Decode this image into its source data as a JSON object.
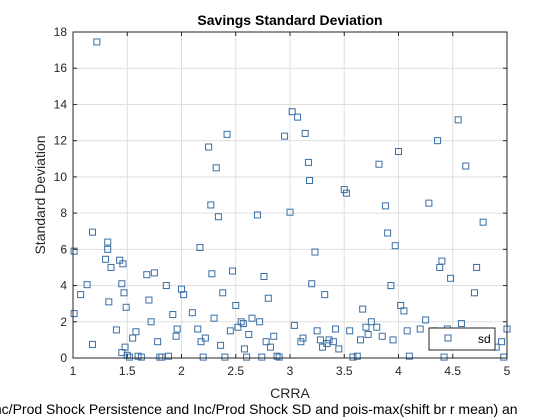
{
  "chart_data": {
    "type": "scatter",
    "title": "Savings Standard Deviation",
    "xlabel": "CRRA",
    "ylabel": "Standard Deviation",
    "footer": "Inc/Prod Shock Persistence and Inc/Prod Shock SD and pois-max(shift br r mean) an",
    "xlim": [
      1,
      5
    ],
    "ylim": [
      0,
      18
    ],
    "xticks": [
      1,
      1.5,
      2,
      2.5,
      3,
      3.5,
      4,
      4.5,
      5
    ],
    "xtick_labels": [
      "1",
      "1.5",
      "2",
      "2.5",
      "3",
      "3.5",
      "4",
      "4.5",
      "5"
    ],
    "yticks": [
      0,
      2,
      4,
      6,
      8,
      10,
      12,
      14,
      16,
      18
    ],
    "ytick_labels": [
      "0",
      "2",
      "4",
      "6",
      "8",
      "10",
      "12",
      "14",
      "16",
      "18"
    ],
    "grid": true,
    "legend": {
      "position": "bottom-right",
      "entries": [
        "sd"
      ]
    },
    "marker_color": "#3a6ea5",
    "series": [
      {
        "name": "sd",
        "marker": "square",
        "points": [
          [
            1.01,
            5.9
          ],
          [
            1.01,
            2.45
          ],
          [
            1.07,
            3.5
          ],
          [
            1.13,
            4.05
          ],
          [
            1.18,
            6.95
          ],
          [
            1.22,
            17.45
          ],
          [
            1.18,
            0.75
          ],
          [
            1.3,
            5.45
          ],
          [
            1.32,
            6.4
          ],
          [
            1.32,
            6.0
          ],
          [
            1.35,
            5.0
          ],
          [
            1.33,
            3.1
          ],
          [
            1.4,
            1.55
          ],
          [
            1.43,
            5.4
          ],
          [
            1.46,
            5.2
          ],
          [
            1.45,
            4.1
          ],
          [
            1.47,
            3.6
          ],
          [
            1.49,
            2.8
          ],
          [
            1.48,
            0.6
          ],
          [
            1.45,
            0.3
          ],
          [
            1.5,
            0.15
          ],
          [
            1.52,
            0.05
          ],
          [
            1.55,
            1.1
          ],
          [
            1.58,
            1.45
          ],
          [
            1.6,
            0.1
          ],
          [
            1.63,
            0.05
          ],
          [
            1.68,
            4.6
          ],
          [
            1.7,
            3.2
          ],
          [
            1.72,
            2.0
          ],
          [
            1.75,
            4.7
          ],
          [
            1.78,
            0.9
          ],
          [
            1.8,
            0.05
          ],
          [
            1.82,
            0.05
          ],
          [
            1.86,
            4.0
          ],
          [
            1.88,
            0.1
          ],
          [
            1.92,
            2.4
          ],
          [
            1.95,
            1.2
          ],
          [
            1.96,
            1.6
          ],
          [
            2.0,
            3.8
          ],
          [
            2.02,
            3.5
          ],
          [
            2.1,
            2.5
          ],
          [
            2.15,
            1.6
          ],
          [
            2.17,
            6.1
          ],
          [
            2.18,
            0.9
          ],
          [
            2.2,
            0.05
          ],
          [
            2.22,
            1.1
          ],
          [
            2.25,
            11.65
          ],
          [
            2.27,
            8.45
          ],
          [
            2.28,
            4.65
          ],
          [
            2.3,
            2.2
          ],
          [
            2.32,
            10.5
          ],
          [
            2.34,
            7.8
          ],
          [
            2.36,
            0.7
          ],
          [
            2.38,
            3.6
          ],
          [
            2.4,
            0.05
          ],
          [
            2.42,
            12.35
          ],
          [
            2.45,
            1.5
          ],
          [
            2.47,
            4.8
          ],
          [
            2.5,
            2.9
          ],
          [
            2.52,
            1.7
          ],
          [
            2.55,
            2.0
          ],
          [
            2.57,
            1.9
          ],
          [
            2.58,
            0.5
          ],
          [
            2.6,
            0.05
          ],
          [
            2.62,
            1.3
          ],
          [
            2.65,
            2.2
          ],
          [
            2.7,
            7.9
          ],
          [
            2.72,
            2.0
          ],
          [
            2.74,
            0.05
          ],
          [
            2.76,
            4.5
          ],
          [
            2.78,
            0.9
          ],
          [
            2.8,
            3.3
          ],
          [
            2.82,
            0.6
          ],
          [
            2.85,
            1.2
          ],
          [
            2.88,
            0.1
          ],
          [
            2.9,
            0.05
          ],
          [
            2.95,
            12.25
          ],
          [
            3.0,
            8.05
          ],
          [
            3.02,
            13.6
          ],
          [
            3.04,
            1.8
          ],
          [
            3.07,
            13.3
          ],
          [
            3.1,
            0.9
          ],
          [
            3.12,
            1.1
          ],
          [
            3.14,
            12.4
          ],
          [
            3.17,
            10.8
          ],
          [
            3.18,
            9.8
          ],
          [
            3.2,
            4.1
          ],
          [
            3.23,
            5.85
          ],
          [
            3.25,
            1.5
          ],
          [
            3.28,
            1.0
          ],
          [
            3.3,
            0.6
          ],
          [
            3.32,
            3.5
          ],
          [
            3.34,
            0.8
          ],
          [
            3.36,
            1.0
          ],
          [
            3.4,
            0.9
          ],
          [
            3.42,
            1.6
          ],
          [
            3.45,
            0.5
          ],
          [
            3.5,
            9.3
          ],
          [
            3.52,
            9.1
          ],
          [
            3.55,
            1.5
          ],
          [
            3.58,
            0.05
          ],
          [
            3.62,
            0.1
          ],
          [
            3.65,
            1.0
          ],
          [
            3.67,
            2.7
          ],
          [
            3.7,
            1.7
          ],
          [
            3.72,
            1.3
          ],
          [
            3.75,
            2.0
          ],
          [
            3.8,
            1.7
          ],
          [
            3.82,
            10.7
          ],
          [
            3.85,
            1.2
          ],
          [
            3.88,
            8.4
          ],
          [
            3.9,
            6.9
          ],
          [
            3.93,
            4.0
          ],
          [
            3.95,
            1.0
          ],
          [
            3.97,
            6.2
          ],
          [
            4.0,
            11.4
          ],
          [
            4.02,
            2.9
          ],
          [
            4.05,
            2.6
          ],
          [
            4.08,
            1.5
          ],
          [
            4.1,
            0.1
          ],
          [
            4.2,
            1.6
          ],
          [
            4.25,
            2.1
          ],
          [
            4.28,
            8.55
          ],
          [
            4.31,
            1.4
          ],
          [
            4.33,
            1.5
          ],
          [
            4.36,
            12.0
          ],
          [
            4.38,
            5.0
          ],
          [
            4.4,
            5.35
          ],
          [
            4.42,
            0.05
          ],
          [
            4.45,
            1.6
          ],
          [
            4.48,
            4.4
          ],
          [
            4.5,
            1.1
          ],
          [
            4.55,
            13.15
          ],
          [
            4.58,
            1.9
          ],
          [
            4.62,
            10.6
          ],
          [
            4.65,
            1.1
          ],
          [
            4.7,
            3.6
          ],
          [
            4.72,
            5.0
          ],
          [
            4.75,
            1.2
          ],
          [
            4.78,
            7.5
          ],
          [
            4.85,
            1.2
          ],
          [
            4.9,
            0.6
          ],
          [
            4.95,
            0.9
          ],
          [
            4.97,
            0.05
          ],
          [
            5.0,
            1.6
          ]
        ]
      }
    ]
  }
}
